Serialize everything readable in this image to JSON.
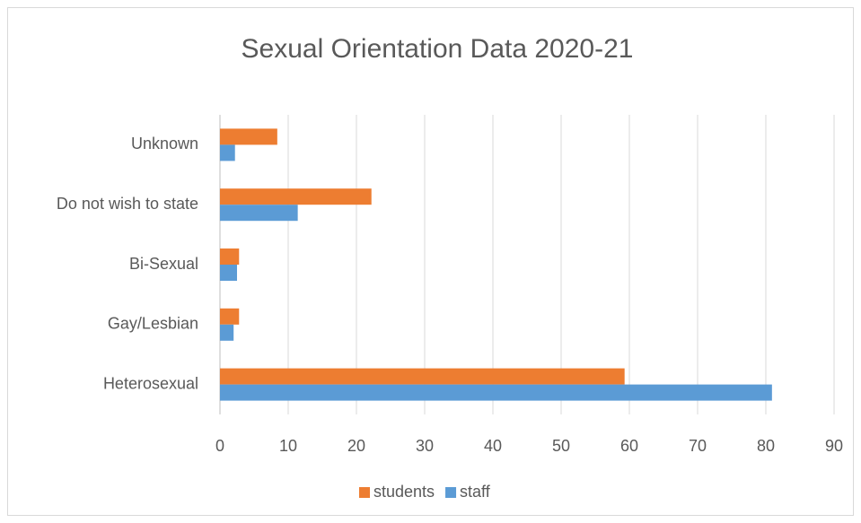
{
  "chart_data": {
    "type": "hbar",
    "title": "Sexual Orientation Data 2020-21",
    "categories": [
      "Heterosexual",
      "Gay/Lesbian",
      "Bi-Sexual",
      "Do not wish to state",
      "Unknown"
    ],
    "series": [
      {
        "name": "students",
        "color": "#ed7d31",
        "values": [
          59.3,
          2.8,
          2.8,
          22.2,
          8.4
        ]
      },
      {
        "name": "staff",
        "color": "#5b9bd5",
        "values": [
          80.9,
          2.0,
          2.5,
          11.4,
          2.2
        ]
      }
    ],
    "xlim": [
      0,
      90
    ],
    "xticks": [
      0,
      10,
      20,
      30,
      40,
      50,
      60,
      70,
      80,
      90
    ],
    "grid": true,
    "legend": "bottom"
  }
}
